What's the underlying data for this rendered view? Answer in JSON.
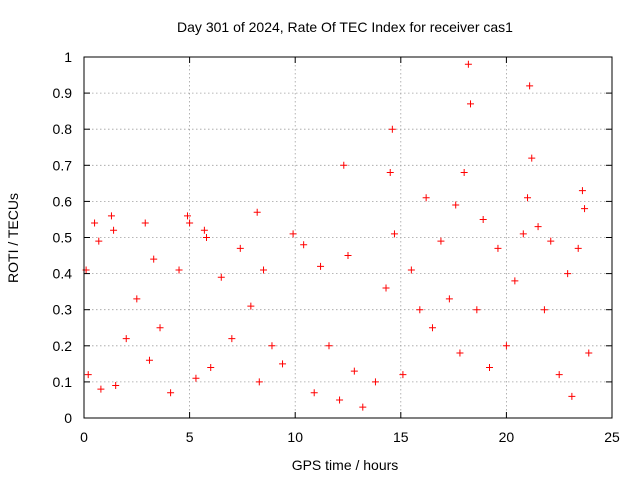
{
  "chart_data": {
    "type": "scatter",
    "title": "Day 301 of 2024, Rate Of TEC Index for receiver cas1",
    "xlabel": "GPS time / hours",
    "ylabel": "ROTI / TECUs",
    "xlim": [
      0,
      25
    ],
    "ylim": [
      0,
      1
    ],
    "x_ticks": [
      "0",
      "5",
      "10",
      "15",
      "20",
      "25"
    ],
    "y_ticks": [
      "0",
      "0.1",
      "0.2",
      "0.3",
      "0.4",
      "0.5",
      "0.6",
      "0.7",
      "0.8",
      "0.9",
      "1"
    ],
    "grid": true,
    "marker": "+",
    "point_color": "#ff0000",
    "series": [
      {
        "x": [
          0.1,
          0.2,
          0.5,
          0.7,
          0.8,
          1.3,
          1.4,
          1.5,
          2.0,
          2.5,
          2.9,
          3.1,
          3.3,
          3.6,
          4.1,
          4.5,
          4.9,
          5.0,
          5.3,
          5.7,
          5.8,
          6.0,
          6.5,
          7.0,
          7.4,
          7.9,
          8.2,
          8.3,
          8.5,
          8.9,
          9.4,
          9.9,
          10.4,
          10.9,
          11.2,
          11.6,
          12.1,
          12.3,
          12.5,
          12.8,
          13.2,
          13.8,
          14.3,
          14.5,
          14.6,
          14.7,
          15.1,
          15.5,
          15.9,
          16.2,
          16.5,
          16.9,
          17.3,
          17.6,
          17.8,
          18.0,
          18.2,
          18.3,
          18.6,
          18.9,
          19.2,
          19.6,
          20.0,
          20.4,
          20.8,
          21.0,
          21.1,
          21.2,
          21.5,
          21.8,
          22.1,
          22.5,
          22.9,
          23.1,
          23.4,
          23.6,
          23.7,
          23.9
        ],
        "y": [
          0.41,
          0.12,
          0.54,
          0.49,
          0.08,
          0.56,
          0.52,
          0.09,
          0.22,
          0.33,
          0.54,
          0.16,
          0.44,
          0.25,
          0.07,
          0.41,
          0.56,
          0.54,
          0.11,
          0.52,
          0.5,
          0.14,
          0.39,
          0.22,
          0.47,
          0.31,
          0.57,
          0.1,
          0.41,
          0.2,
          0.15,
          0.51,
          0.48,
          0.07,
          0.42,
          0.2,
          0.05,
          0.7,
          0.45,
          0.13,
          0.03,
          0.1,
          0.36,
          0.68,
          0.8,
          0.51,
          0.12,
          0.41,
          0.3,
          0.61,
          0.25,
          0.49,
          0.33,
          0.59,
          0.18,
          0.68,
          0.98,
          0.87,
          0.3,
          0.55,
          0.14,
          0.47,
          0.2,
          0.38,
          0.51,
          0.61,
          0.92,
          0.72,
          0.53,
          0.3,
          0.49,
          0.12,
          0.4,
          0.06,
          0.47,
          0.63,
          0.58,
          0.18
        ]
      }
    ]
  }
}
